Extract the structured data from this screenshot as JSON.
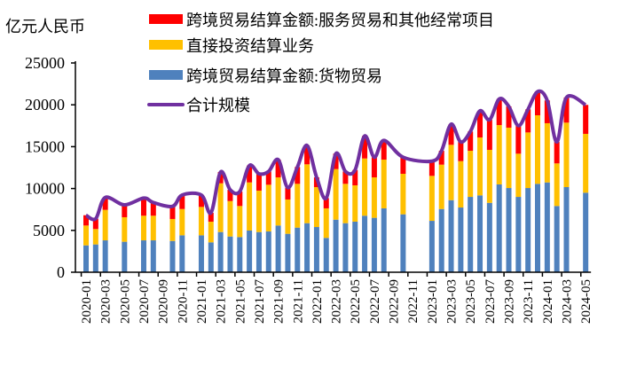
{
  "chart_data": {
    "type": "bar",
    "stacked": true,
    "ylabel": "亿元人民币",
    "ylim": [
      0,
      25000
    ],
    "yticks": [
      0,
      5000,
      10000,
      15000,
      20000,
      25000
    ],
    "grid": false,
    "legend_placement": "top-center",
    "categories": [
      "2020-01",
      "2020-02",
      "2020-03",
      "2020-04",
      "2020-05",
      "2020-06",
      "2020-07",
      "2020-08",
      "2020-09",
      "2020-10",
      "2020-11",
      "2020-12",
      "2021-01",
      "2021-02",
      "2021-03",
      "2021-04",
      "2021-05",
      "2021-06",
      "2021-07",
      "2021-08",
      "2021-09",
      "2021-10",
      "2021-11",
      "2021-12",
      "2022-01",
      "2022-02",
      "2022-03",
      "2022-04",
      "2022-05",
      "2022-06",
      "2022-07",
      "2022-08",
      "2022-09",
      "2022-10",
      "2022-11",
      "2022-12",
      "2023-01",
      "2023-02",
      "2023-03",
      "2023-04",
      "2023-05",
      "2023-06",
      "2023-07",
      "2023-08",
      "2023-09",
      "2023-10",
      "2023-11",
      "2023-12",
      "2024-01",
      "2024-02",
      "2024-03",
      "2024-04",
      "2024-05"
    ],
    "tick_labels": [
      "2020-01",
      "2020-03",
      "2020-05",
      "2020-07",
      "2020-09",
      "2020-11",
      "2021-01",
      "2021-03",
      "2021-05",
      "2021-07",
      "2021-09",
      "2021-11",
      "2022-01",
      "2022-03",
      "2022-05",
      "2022-07",
      "2022-09",
      "2022-11",
      "2023-01",
      "2023-03",
      "2023-05",
      "2023-07",
      "2023-09",
      "2023-11",
      "2024-01",
      "2024-03",
      "2024-05"
    ],
    "series": [
      {
        "name": "跨境贸易结算金额:货物贸易",
        "kind": "bar",
        "color": "#4F81BD",
        "values": [
          3210,
          3320,
          3810,
          null,
          3640,
          null,
          3810,
          3810,
          null,
          3740,
          4410,
          null,
          4410,
          3570,
          4800,
          4270,
          4200,
          4980,
          4800,
          4870,
          5580,
          4590,
          5330,
          5860,
          5400,
          4100,
          6280,
          5860,
          6040,
          6750,
          6500,
          7630,
          null,
          6920,
          null,
          null,
          6140,
          7550,
          8610,
          7730,
          9000,
          9180,
          8290,
          10490,
          10060,
          9000,
          10060,
          10560,
          10730,
          7910,
          10170,
          null,
          9500
        ]
      },
      {
        "name": "直接投资结算业务",
        "kind": "bar",
        "color": "#FFC000",
        "values": [
          2370,
          1840,
          3640,
          null,
          2930,
          null,
          2940,
          2940,
          null,
          2620,
          3140,
          null,
          3390,
          2470,
          5820,
          4230,
          3710,
          5750,
          4950,
          5580,
          5750,
          4100,
          5230,
          7030,
          4770,
          3530,
          6040,
          4700,
          4340,
          6840,
          4830,
          5820,
          null,
          4840,
          null,
          null,
          5370,
          5300,
          6610,
          5540,
          5510,
          6920,
          6330,
          7090,
          7210,
          5160,
          6640,
          8190,
          7070,
          5090,
          7700,
          null,
          7030
        ]
      },
      {
        "name": "跨境贸易结算金额:服务贸易和其他经常项目",
        "kind": "bar",
        "color": "#FF0000",
        "values": [
          1230,
          1230,
          1480,
          null,
          1480,
          null,
          2110,
          1580,
          null,
          1510,
          1670,
          null,
          1420,
          1060,
          1350,
          1350,
          1730,
          2010,
          2010,
          1590,
          2120,
          1410,
          2010,
          2260,
          1160,
          1230,
          1840,
          1480,
          1830,
          2690,
          2410,
          2300,
          null,
          1980,
          null,
          null,
          1760,
          1660,
          2470,
          2300,
          2300,
          3180,
          3600,
          3110,
          2540,
          3350,
          2760,
          2830,
          2720,
          2570,
          3000,
          null,
          3460
        ]
      },
      {
        "name": "合计规模",
        "kind": "line",
        "color": "#7030A0",
        "values": [
          6810,
          6390,
          8930,
          null,
          8050,
          null,
          8860,
          8330,
          null,
          7870,
          9220,
          null,
          9220,
          7100,
          11970,
          9850,
          9640,
          12740,
          11760,
          12040,
          13450,
          10100,
          12570,
          15150,
          11330,
          8860,
          14160,
          12040,
          12210,
          16280,
          13740,
          15750,
          null,
          13740,
          null,
          null,
          13270,
          14510,
          17690,
          15570,
          16810,
          19280,
          18220,
          20690,
          19810,
          17510,
          19460,
          21580,
          20520,
          15570,
          20870,
          null,
          19990
        ]
      }
    ],
    "legend": [
      {
        "label": "跨境贸易结算金额:服务贸易和其他经常项目",
        "color": "#FF0000",
        "kind": "bar"
      },
      {
        "label": "直接投资结算业务",
        "color": "#FFC000",
        "kind": "bar"
      },
      {
        "label": "跨境贸易结算金额:货物贸易",
        "color": "#4F81BD",
        "kind": "bar"
      },
      {
        "label": "合计规模",
        "color": "#7030A0",
        "kind": "line"
      }
    ]
  }
}
